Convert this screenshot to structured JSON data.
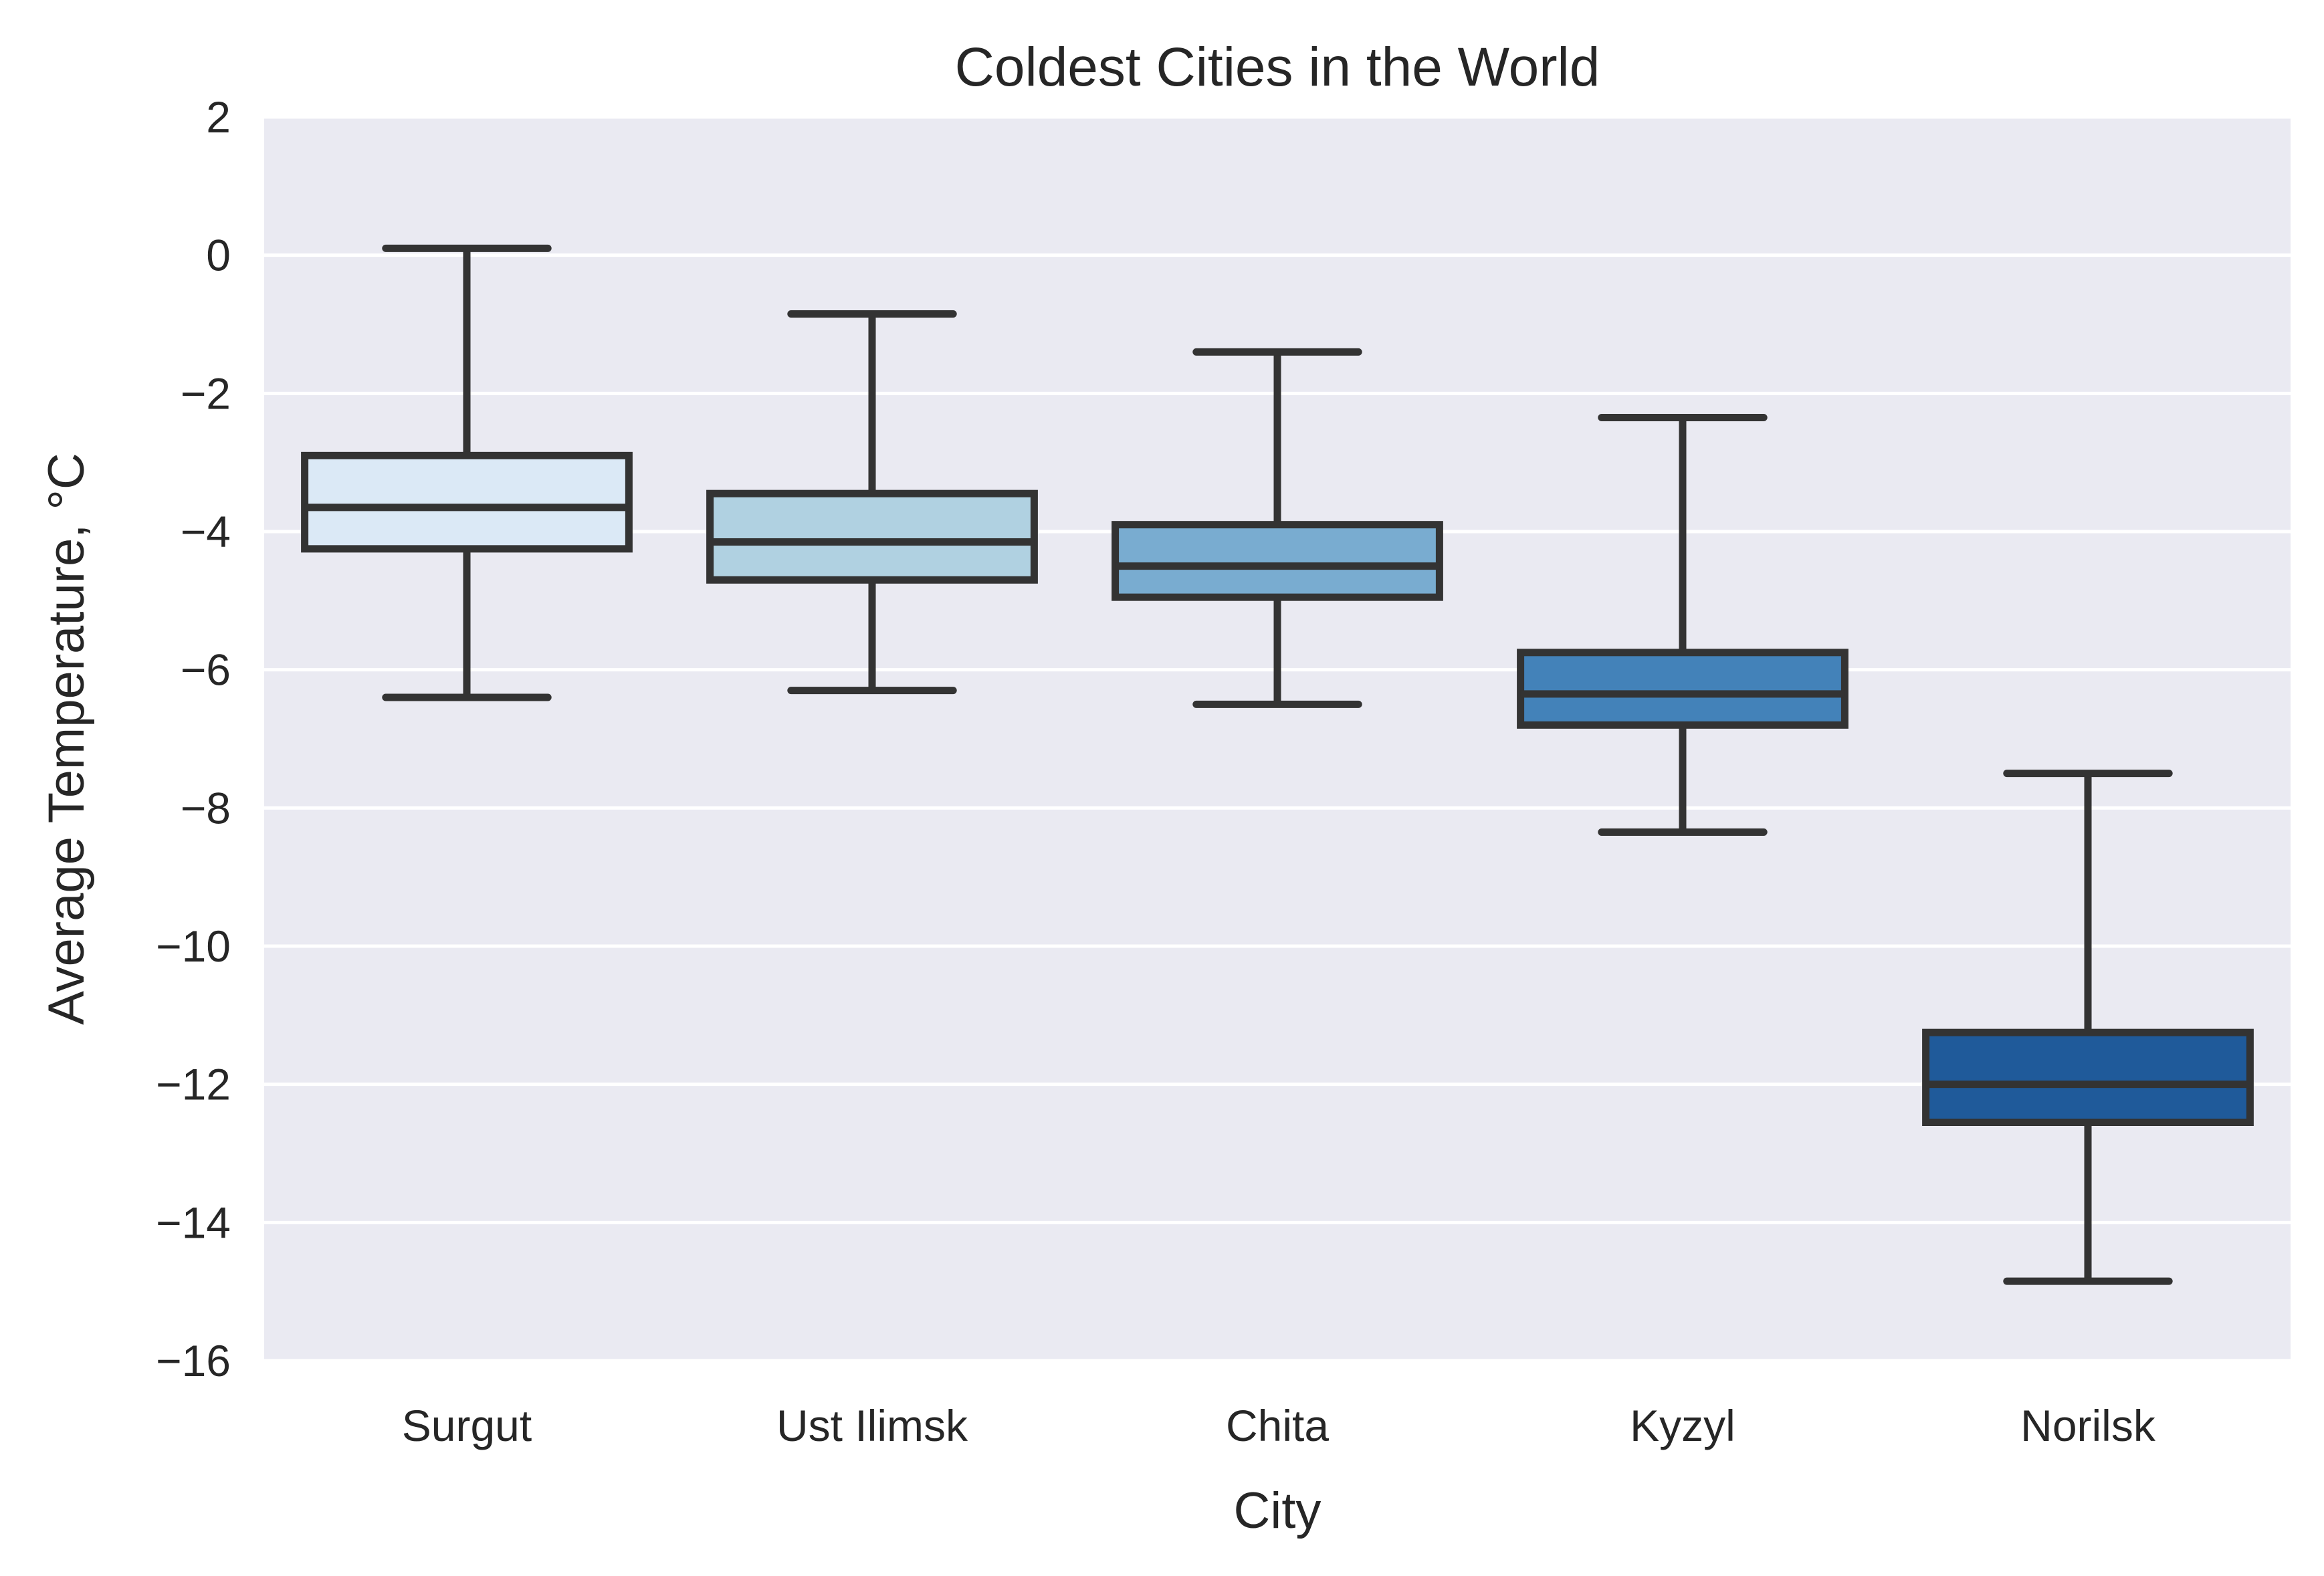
{
  "chart_data": {
    "type": "box",
    "title": "Coldest Cities in the World",
    "xlabel": "City",
    "ylabel": "Average Temperature, °C",
    "categories": [
      "Surgut",
      "Ust Ilimsk",
      "Chita",
      "Kyzyl",
      "Norilsk"
    ],
    "boxes": [
      {
        "category": "Surgut",
        "whisker_low": -6.4,
        "q1": -4.25,
        "median": -3.65,
        "q3": -2.9,
        "whisker_high": 0.1,
        "color": "#dbe9f6"
      },
      {
        "category": "Ust Ilimsk",
        "whisker_low": -6.3,
        "q1": -4.7,
        "median": -4.15,
        "q3": -3.45,
        "whisker_high": -0.85,
        "color": "#b0d1e1"
      },
      {
        "category": "Chita",
        "whisker_low": -6.5,
        "q1": -4.95,
        "median": -4.5,
        "q3": -3.9,
        "whisker_high": -1.4,
        "color": "#79acd0"
      },
      {
        "category": "Kyzyl",
        "whisker_low": -8.35,
        "q1": -6.8,
        "median": -6.35,
        "q3": -5.75,
        "whisker_high": -2.35,
        "color": "#4382b9"
      },
      {
        "category": "Norilsk",
        "whisker_low": -14.85,
        "q1": -12.55,
        "median": -12.0,
        "q3": -11.25,
        "whisker_high": -7.5,
        "color": "#1f5a9a"
      }
    ],
    "ylim": [
      -16,
      2
    ],
    "yticks": [
      2,
      0,
      -2,
      -4,
      -6,
      -8,
      -10,
      -12,
      -14,
      -16
    ],
    "ytick_labels": [
      "2",
      "0",
      "−2",
      "−4",
      "−6",
      "−8",
      "−10",
      "−12",
      "−14",
      "−16"
    ],
    "grid": true,
    "background_color": "#eaeaf2",
    "line_color": "#333333",
    "grid_color": "#ffffff"
  }
}
